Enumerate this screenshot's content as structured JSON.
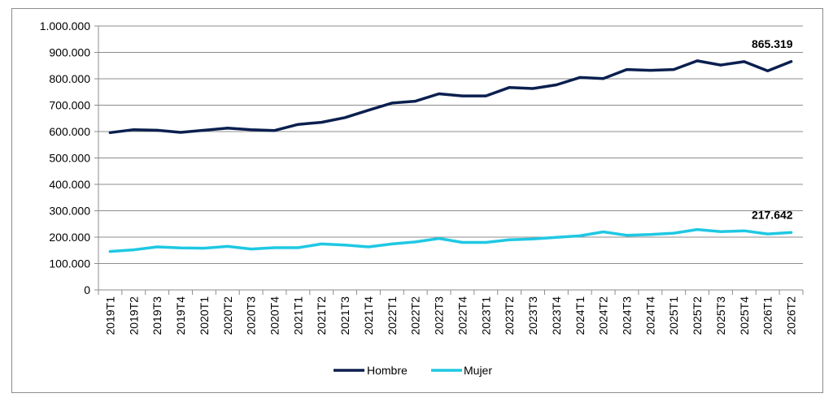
{
  "chart_data": {
    "type": "line",
    "categories": [
      "2019T1",
      "2019T2",
      "2019T3",
      "2019T4",
      "2020T1",
      "2020T2",
      "2020T3",
      "2020T4",
      "2021T1",
      "2021T2",
      "2021T3",
      "2021T4",
      "2022T1",
      "2022T2",
      "2022T3",
      "2022T4",
      "2023T1",
      "2023T2",
      "2023T3",
      "2023T4",
      "2024T1",
      "2024T2",
      "2024T3",
      "2024T4",
      "2025T1",
      "2025T2",
      "2025T3",
      "2025T4",
      "2026T1",
      "2026T2"
    ],
    "series": [
      {
        "name": "Hombre",
        "color": "#0b1f4f",
        "values": [
          596000,
          607000,
          605000,
          597000,
          605000,
          613000,
          607000,
          604000,
          627000,
          635000,
          653000,
          681000,
          708000,
          715000,
          743000,
          735000,
          735000,
          767000,
          763000,
          777000,
          805000,
          801000,
          835000,
          832000,
          835000,
          868000,
          852000,
          865000,
          830000,
          865319
        ],
        "last_label": "865.319"
      },
      {
        "name": "Mujer",
        "color": "#1fc8e3",
        "values": [
          146000,
          152000,
          163000,
          159000,
          158000,
          165000,
          155000,
          160000,
          160000,
          174000,
          170000,
          163000,
          174000,
          182000,
          195000,
          180000,
          180000,
          190000,
          193000,
          199000,
          205000,
          220000,
          207000,
          210000,
          215000,
          229000,
          221000,
          224000,
          212000,
          217642
        ],
        "last_label": "217.642"
      }
    ],
    "ylim": [
      0,
      1000000
    ],
    "y_ticks": [
      {
        "value": 0,
        "label": "0"
      },
      {
        "value": 100000,
        "label": "100.000"
      },
      {
        "value": 200000,
        "label": "200.000"
      },
      {
        "value": 300000,
        "label": "300.000"
      },
      {
        "value": 400000,
        "label": "400.000"
      },
      {
        "value": 500000,
        "label": "500.000"
      },
      {
        "value": 600000,
        "label": "600.000"
      },
      {
        "value": 700000,
        "label": "700.000"
      },
      {
        "value": 800000,
        "label": "800.000"
      },
      {
        "value": 900000,
        "label": "900.000"
      },
      {
        "value": 1000000,
        "label": "1.000.000"
      }
    ],
    "grid": true,
    "legend_position": "bottom"
  }
}
